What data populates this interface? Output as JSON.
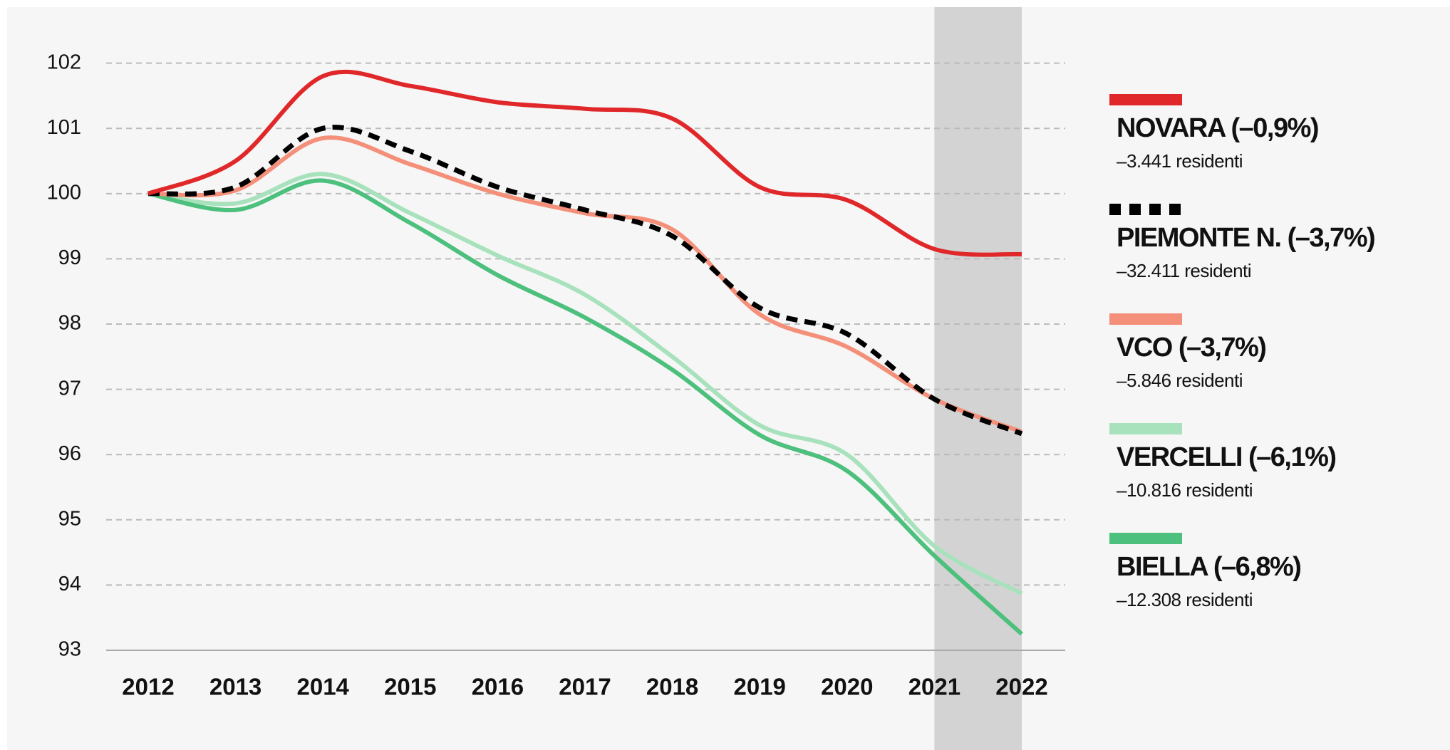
{
  "chart_data": {
    "type": "line",
    "categories": [
      "2012",
      "2013",
      "2014",
      "2015",
      "2016",
      "2017",
      "2018",
      "2019",
      "2020",
      "2021",
      "2022"
    ],
    "ylim": [
      93,
      102.4
    ],
    "yticks": [
      93,
      94,
      95,
      96,
      97,
      98,
      99,
      100,
      101,
      102
    ],
    "grid": true,
    "highlight": [
      "2021",
      "2022"
    ],
    "series": [
      {
        "name": "NOVARA (–0,9%)",
        "detail": "–3.441 residenti",
        "color": "#e0282a",
        "dashed": false,
        "values": [
          100,
          100.5,
          101.8,
          101.65,
          101.4,
          101.3,
          101.15,
          100.1,
          99.9,
          99.15,
          99.07
        ]
      },
      {
        "name": "PIEMONTE N. (–3,7%)",
        "detail": "–32.411 residenti",
        "color": "#000000",
        "dashed": true,
        "values": [
          100,
          100.1,
          101.0,
          100.65,
          100.1,
          99.75,
          99.35,
          98.25,
          97.85,
          96.85,
          96.32
        ]
      },
      {
        "name": "VCO (–3,7%)",
        "detail": "–5.846 residenti",
        "color": "#f4907a",
        "dashed": false,
        "values": [
          100,
          100.05,
          100.85,
          100.45,
          100.0,
          99.7,
          99.45,
          98.15,
          97.65,
          96.85,
          96.35
        ]
      },
      {
        "name": "VERCELLI (–6,1%)",
        "detail": "–10.816 residenti",
        "color": "#a8e2bc",
        "dashed": false,
        "values": [
          100,
          99.85,
          100.3,
          99.7,
          99.05,
          98.45,
          97.5,
          96.45,
          96.0,
          94.6,
          93.87
        ]
      },
      {
        "name": "BIELLA (–6,8%)",
        "detail": "–12.308 residenti",
        "color": "#4cc07c",
        "dashed": false,
        "values": [
          100,
          99.75,
          100.2,
          99.55,
          98.75,
          98.1,
          97.3,
          96.3,
          95.75,
          94.45,
          93.25
        ]
      }
    ]
  }
}
